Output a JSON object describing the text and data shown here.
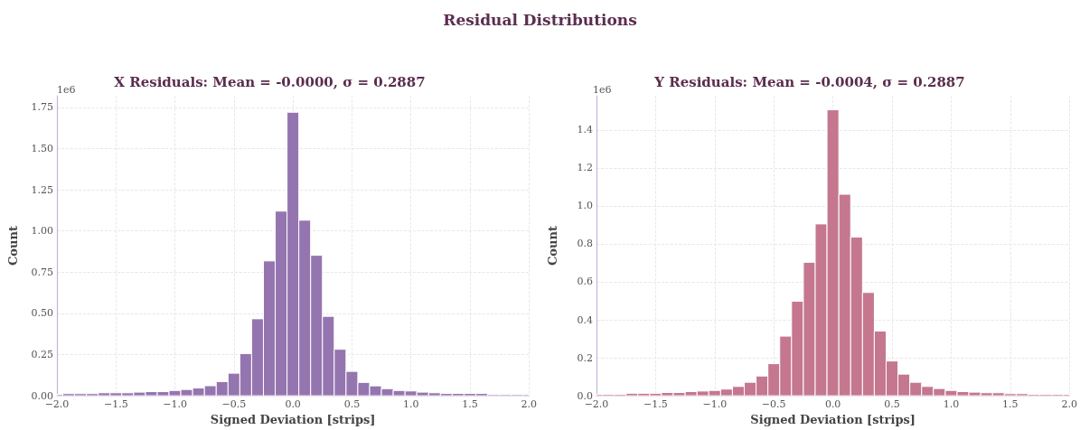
{
  "chart_data": [
    {
      "type": "histogram",
      "title": "X Residuals: Mean = -0.0000, σ = 0.2887",
      "xlabel": "Signed Deviation [strips]",
      "ylabel": "Count",
      "annotations": [
        "Residual Distributions",
        "1e6"
      ],
      "color": "#9575b0",
      "bins": [
        -2.0,
        -1.95,
        -1.85,
        -1.75,
        -1.65,
        -1.55,
        -1.45,
        -1.35,
        -1.25,
        -1.15,
        -1.05,
        -0.95,
        -0.85,
        -0.75,
        -0.65,
        -0.55,
        -0.45,
        -0.35,
        -0.25,
        -0.15,
        -0.05,
        0.05,
        0.15,
        0.25,
        0.35,
        0.45,
        0.55,
        0.65,
        0.75,
        0.85,
        0.95,
        1.05,
        1.15,
        1.25,
        1.35,
        1.45,
        1.55,
        1.65,
        1.75,
        1.85,
        1.95,
        2.0
      ],
      "values": [
        0.008,
        0.013,
        0.013,
        0.013,
        0.018,
        0.018,
        0.018,
        0.022,
        0.025,
        0.025,
        0.032,
        0.038,
        0.047,
        0.061,
        0.086,
        0.137,
        0.256,
        0.467,
        0.818,
        1.12,
        1.72,
        1.065,
        0.852,
        0.482,
        0.282,
        0.148,
        0.081,
        0.06,
        0.043,
        0.032,
        0.029,
        0.022,
        0.018,
        0.014,
        0.014,
        0.014,
        0.014,
        0.007,
        0.007,
        0.007,
        0.007
      ],
      "xlim": [
        -2.0,
        2.0
      ],
      "xticks": [
        {
          "value": -2.0,
          "label": "−2.0"
        },
        {
          "value": -1.5,
          "label": "−1.5"
        },
        {
          "value": -1.0,
          "label": "−1.0"
        },
        {
          "value": -0.5,
          "label": "−0.5"
        },
        {
          "value": 0,
          "label": "0.0"
        },
        {
          "value": 0.5,
          "label": "0.5"
        },
        {
          "value": 1.0,
          "label": "1.0"
        },
        {
          "value": 1.5,
          "label": "1.5"
        },
        {
          "value": 2.0,
          "label": "2.0"
        }
      ],
      "ylim": [
        0,
        1.82
      ],
      "yticks": [
        {
          "value": 0,
          "label": "0.00"
        },
        {
          "value": 0.25,
          "label": "0.25"
        },
        {
          "value": 0.5,
          "label": "0.50"
        },
        {
          "value": 0.75,
          "label": "0.75"
        },
        {
          "value": 1.0,
          "label": "1.00"
        },
        {
          "value": 1.25,
          "label": "1.25"
        },
        {
          "value": 1.5,
          "label": "1.50"
        },
        {
          "value": 1.75,
          "label": "1.75"
        }
      ],
      "grid": true
    },
    {
      "type": "histogram",
      "title": "Y Residuals: Mean = -0.0004, σ = 0.2887",
      "xlabel": "Signed Deviation [strips]",
      "ylabel": "Count",
      "annotations": [
        "1e6"
      ],
      "color": "#c4778e",
      "bins": [
        -2.0,
        -1.95,
        -1.85,
        -1.75,
        -1.65,
        -1.55,
        -1.45,
        -1.35,
        -1.25,
        -1.15,
        -1.05,
        -0.95,
        -0.85,
        -0.75,
        -0.65,
        -0.55,
        -0.45,
        -0.35,
        -0.25,
        -0.15,
        -0.05,
        0.05,
        0.15,
        0.25,
        0.35,
        0.45,
        0.55,
        0.65,
        0.75,
        0.85,
        0.95,
        1.05,
        1.15,
        1.25,
        1.35,
        1.45,
        1.55,
        1.65,
        1.75,
        1.85,
        1.95,
        2.0
      ],
      "values": [
        0.008,
        0.008,
        0.008,
        0.013,
        0.013,
        0.013,
        0.017,
        0.017,
        0.022,
        0.025,
        0.028,
        0.035,
        0.049,
        0.071,
        0.104,
        0.169,
        0.314,
        0.498,
        0.703,
        0.905,
        1.506,
        1.061,
        0.836,
        0.544,
        0.341,
        0.183,
        0.114,
        0.071,
        0.049,
        0.038,
        0.028,
        0.022,
        0.019,
        0.016,
        0.016,
        0.011,
        0.011,
        0.008,
        0.008,
        0.008,
        0.008
      ],
      "xlim": [
        -2.0,
        2.0
      ],
      "xticks": [
        {
          "value": -2.0,
          "label": "−2.0"
        },
        {
          "value": -1.5,
          "label": "−1.5"
        },
        {
          "value": -1.0,
          "label": "−1.0"
        },
        {
          "value": -0.5,
          "label": "−0.5"
        },
        {
          "value": 0,
          "label": "0.0"
        },
        {
          "value": 0.5,
          "label": "0.5"
        },
        {
          "value": 1.0,
          "label": "1.0"
        },
        {
          "value": 1.5,
          "label": "1.5"
        },
        {
          "value": 2.0,
          "label": "2.0"
        }
      ],
      "ylim": [
        0,
        1.58
      ],
      "yticks": [
        {
          "value": 0,
          "label": "0.0"
        },
        {
          "value": 0.2,
          "label": "0.2"
        },
        {
          "value": 0.4,
          "label": "0.4"
        },
        {
          "value": 0.6,
          "label": "0.6"
        },
        {
          "value": 0.8,
          "label": "0.8"
        },
        {
          "value": 1.0,
          "label": "1.0"
        },
        {
          "value": 1.2,
          "label": "1.2"
        },
        {
          "value": 1.4,
          "label": "1.4"
        }
      ],
      "grid": true
    }
  ]
}
